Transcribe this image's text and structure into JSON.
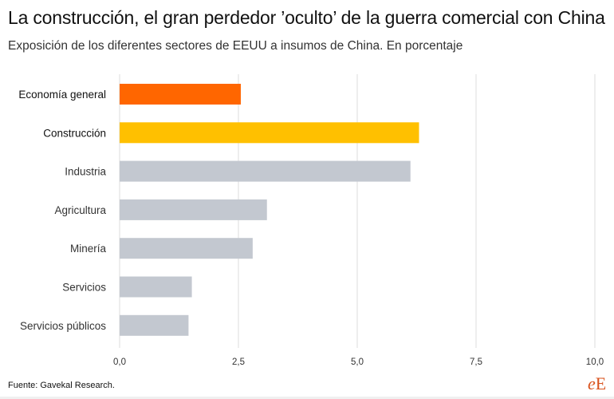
{
  "header": {
    "title": "La construcción, el gran perdedor ’oculto’ de la guerra comercial con China",
    "subtitle": "Exposición de los diferentes sectores de EEUU a insumos de China. En porcentaje"
  },
  "footer": {
    "source": "Fuente: Gavekal Research.",
    "logo_e": "e",
    "logo_E": "E"
  },
  "chart_data": {
    "type": "bar",
    "orientation": "horizontal",
    "categories": [
      "Economía general",
      "Construcción",
      "Industria",
      "Agricultura",
      "Minería",
      "Servicios",
      "Servicios públicos"
    ],
    "values": [
      2.55,
      6.3,
      6.12,
      3.1,
      2.8,
      1.52,
      1.45
    ],
    "bar_colors": [
      "#ff6600",
      "#ffc000",
      "#c3c8d0",
      "#c3c8d0",
      "#c3c8d0",
      "#c3c8d0",
      "#c3c8d0"
    ],
    "xlim": [
      0,
      10
    ],
    "ticks": [
      0,
      2.5,
      5,
      7.5,
      10
    ],
    "tick_labels": [
      "0,0",
      "2,5",
      "5,0",
      "7,5",
      "10,0"
    ],
    "grid": true
  }
}
